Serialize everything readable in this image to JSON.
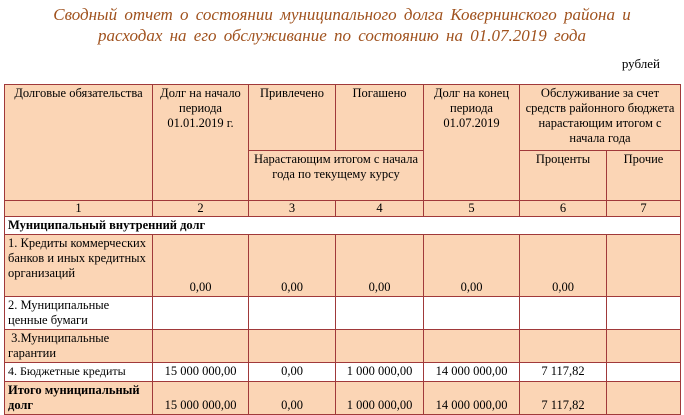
{
  "title": {
    "line1": "Сводный отчет о состоянии муниципального долга Ковернинского района и",
    "line2": "расходах на его обслуживание по состоянию на 01.07.2019 года"
  },
  "units": "рублей",
  "colors": {
    "title": "#a0521e",
    "border": "#a0393a",
    "fill": "#fbd5b5"
  },
  "header": {
    "col1": "Долговые обязательства",
    "col2": "Долг на начало периода 01.01.2019 г.",
    "col3": "Привлечено",
    "col4": "Погашено",
    "col34_sub": "Нарастающим итогом с начала года по текущему курсу",
    "col5": "Долг на конец периода 01.07.2019",
    "col67": "Обслуживание за счет средств районного бюджета нарастающим итогом с начала года",
    "col6": "Проценты",
    "col7": "Прочие",
    "numbers": [
      "1",
      "2",
      "3",
      "4",
      "5",
      "6",
      "7"
    ]
  },
  "section": "Муниципальный внутренний долг",
  "rows": [
    {
      "name": "1. Кредиты коммерческих банков и иных кредитных организаций",
      "values": [
        "0,00",
        "0,00",
        "0,00",
        "0,00",
        "0,00",
        ""
      ]
    },
    {
      "name": "2. Муниципальные ценные бумаги",
      "values": [
        "",
        "",
        "",
        "",
        "",
        ""
      ]
    },
    {
      "name": " 3.Муниципальные гарантии",
      "values": [
        "",
        "",
        "",
        "",
        "",
        ""
      ]
    },
    {
      "name": "4. Бюджетные кредиты",
      "values": [
        "15 000 000,00",
        "0,00",
        "1 000 000,00",
        "14 000 000,00",
        "7 117,82",
        ""
      ]
    },
    {
      "name": "Итого муниципальный долг",
      "values": [
        "15 000 000,00",
        "0,00",
        "1 000 000,00",
        "14 000 000,00",
        "7 117,82",
        ""
      ]
    }
  ]
}
